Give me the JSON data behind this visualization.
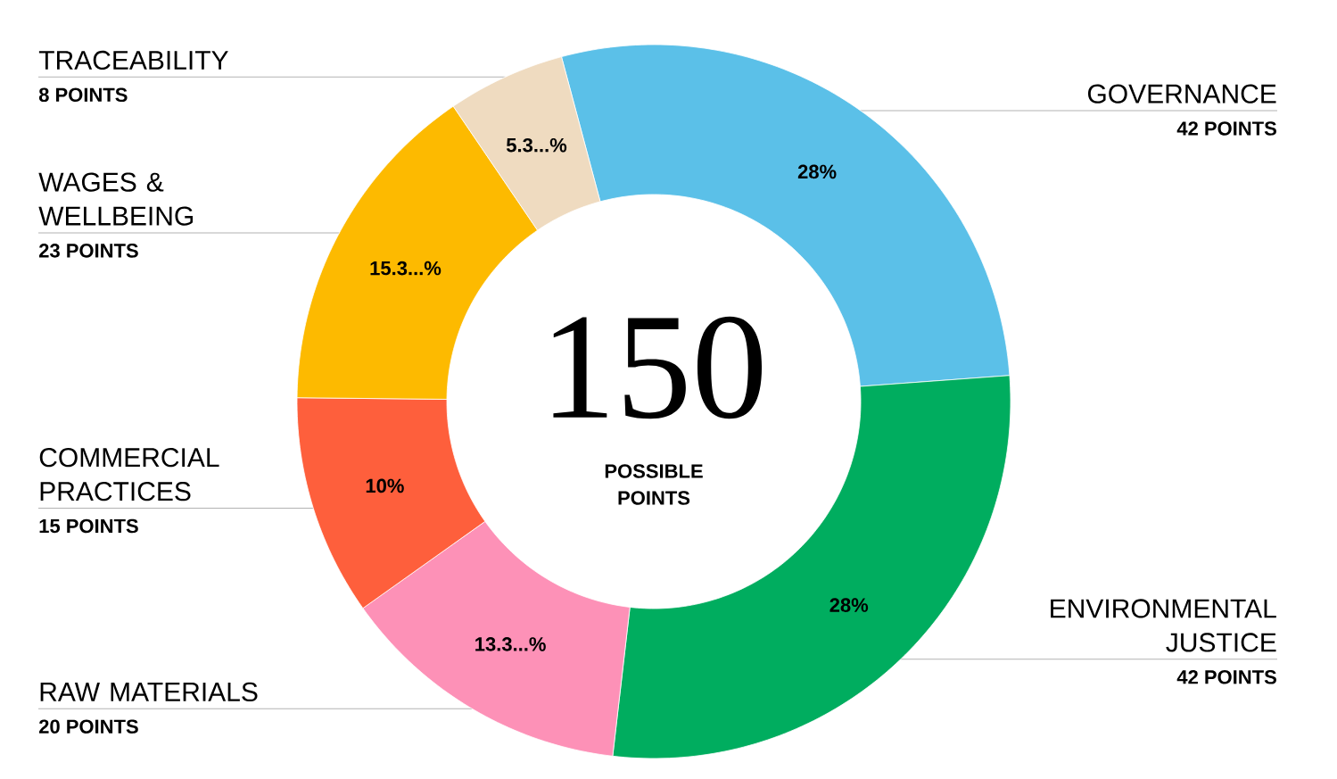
{
  "chart_data": {
    "type": "donut",
    "title": "150",
    "subtitle": "POSSIBLE POINTS",
    "categories": [
      "GOVERNANCE",
      "ENVIRONMENTAL JUSTICE",
      "RAW MATERIALS",
      "COMMERCIAL PRACTICES",
      "WAGES & WELLBEING",
      "TRACEABILITY"
    ],
    "values": [
      28,
      28,
      13.33,
      10,
      15.33,
      5.33
    ],
    "colors": [
      "#5bc0e8",
      "#00ad5f",
      "#fd91b7",
      "#fe5f3c",
      "#fdba00",
      "#efdbc0"
    ],
    "value_labels": [
      "28%",
      "28%",
      "13.3...%",
      "10%",
      "15.3...%",
      "5.3...%"
    ],
    "annotations": [
      "42 POINTS",
      "42 POINTS",
      "20 POINTS",
      "15 POINTS",
      "23 POINTS",
      "8 POINTS"
    ]
  }
}
